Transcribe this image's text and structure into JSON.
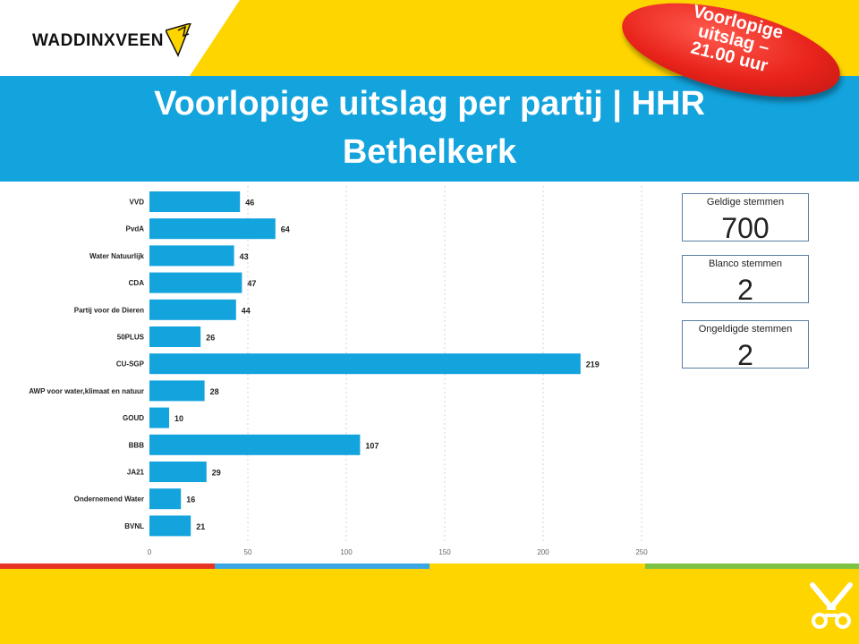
{
  "logo": {
    "text": "WADDINXVEEN"
  },
  "badge": {
    "line1": "Voorlopige",
    "line2": "uitslag –",
    "line3": "21.00 uur"
  },
  "banner": {
    "title_line1": "Voorlopige uitslag per partij | HHR",
    "title_line2": "Bethelkerk"
  },
  "stats": {
    "valid": {
      "label": "Geldige stemmen",
      "value": "700"
    },
    "blank": {
      "label": "Blanco stemmen",
      "value": "2"
    },
    "invalid": {
      "label": "Ongeldigde stemmen",
      "value": "2"
    }
  },
  "colors": {
    "bar": "#13a3dd",
    "banner": "#13a3dd",
    "background": "#ffd500",
    "badge": "#e8231b",
    "stripe": [
      "#e63323",
      "#3aa7e2",
      "#ffd500",
      "#7dc242"
    ]
  },
  "chart_data": {
    "type": "bar",
    "orientation": "horizontal",
    "categories": [
      "VVD",
      "PvdA",
      "Water Natuurlijk",
      "CDA",
      "Partij voor de Dieren",
      "50PLUS",
      "CU-SGP",
      "AWP voor water,klimaat en natuur",
      "GOUD",
      "BBB",
      "JA21",
      "Ondernemend Water",
      "BVNL"
    ],
    "values": [
      46,
      64,
      43,
      47,
      44,
      26,
      219,
      28,
      10,
      107,
      29,
      16,
      21
    ],
    "xlim": [
      0,
      300
    ],
    "xticks": [
      0,
      50,
      100,
      150,
      200,
      250,
      300
    ],
    "grid": true,
    "data_labels": true
  }
}
